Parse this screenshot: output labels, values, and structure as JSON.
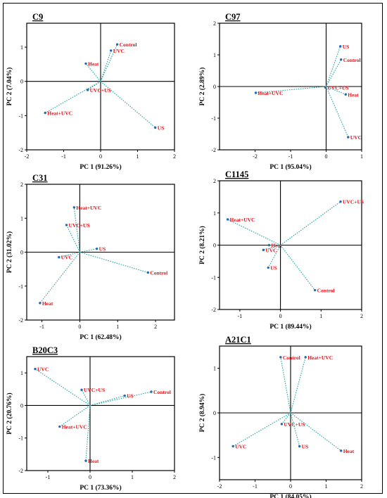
{
  "chart_data": [
    {
      "type": "scatter",
      "title": "C9",
      "xlabel": "PC 1 (91.26%)",
      "ylabel": "PC 2 (7.04%)",
      "xlim": [
        -2,
        2
      ],
      "ylim": [
        -2,
        1.7
      ],
      "xticks": [
        -2,
        -1,
        0,
        1,
        2
      ],
      "yticks": [
        -2,
        -1,
        0,
        1
      ],
      "points": [
        {
          "label": "Control",
          "x": 0.45,
          "y": 1.08
        },
        {
          "label": "UVC",
          "x": 0.28,
          "y": 0.9
        },
        {
          "label": "Heat",
          "x": -0.4,
          "y": 0.52
        },
        {
          "label": "UVC+US",
          "x": -0.35,
          "y": -0.25
        },
        {
          "label": "Heat+UVC",
          "x": -1.5,
          "y": -0.92
        },
        {
          "label": "US",
          "x": 1.48,
          "y": -1.35
        }
      ]
    },
    {
      "type": "scatter",
      "title": "C97",
      "xlabel": "PC 1 (95.04%)",
      "ylabel": "PC 2 (2.89%)",
      "xlim": [
        -3,
        1
      ],
      "ylim": [
        -2,
        2
      ],
      "xticks": [
        -2,
        -1,
        0,
        1
      ],
      "yticks": [
        -2,
        -1,
        0,
        1,
        2
      ],
      "points": [
        {
          "label": "US",
          "x": 0.4,
          "y": 1.27
        },
        {
          "label": "Control",
          "x": 0.42,
          "y": 0.85
        },
        {
          "label": "Heat+UVC",
          "x": -1.98,
          "y": -0.2
        },
        {
          "label": "UVC+US",
          "x": -0.02,
          "y": -0.03
        },
        {
          "label": "Heat",
          "x": 0.55,
          "y": -0.25
        },
        {
          "label": "UVC",
          "x": 0.62,
          "y": -1.6
        }
      ]
    },
    {
      "type": "scatter",
      "title": "C31",
      "xlabel": "PC 1 (62.48%)",
      "ylabel": "PC 2 (31.02%)",
      "xlim": [
        -1.4,
        2.5
      ],
      "ylim": [
        -2,
        2
      ],
      "xticks": [
        -1,
        0,
        1,
        2
      ],
      "yticks": [
        -2,
        -1,
        0,
        1,
        2
      ],
      "points": [
        {
          "label": "Heat+UVC",
          "x": -0.15,
          "y": 1.32
        },
        {
          "label": "UVC+US",
          "x": -0.35,
          "y": 0.8
        },
        {
          "label": "US",
          "x": 0.45,
          "y": 0.1
        },
        {
          "label": "UVC",
          "x": -0.55,
          "y": -0.15
        },
        {
          "label": "Control",
          "x": 1.8,
          "y": -0.6
        },
        {
          "label": "Heat",
          "x": -1.05,
          "y": -1.5
        }
      ]
    },
    {
      "type": "scatter",
      "title": "C1145",
      "xlabel": "PC 1 (89.44%)",
      "ylabel": "PC 2 (8.21%)",
      "xlim": [
        -1.5,
        2
      ],
      "ylim": [
        -2,
        2
      ],
      "xticks": [
        -1,
        0,
        1,
        2
      ],
      "yticks": [
        -2,
        -1,
        0,
        1,
        2
      ],
      "points": [
        {
          "label": "UVC+US",
          "x": 1.48,
          "y": 1.35
        },
        {
          "label": "Heat+UVC",
          "x": -1.3,
          "y": 0.8
        },
        {
          "label": "Heat",
          "x": -0.28,
          "y": 0.0
        },
        {
          "label": "UVC",
          "x": -0.42,
          "y": -0.15
        },
        {
          "label": "US",
          "x": -0.3,
          "y": -0.7
        },
        {
          "label": "Control",
          "x": 0.85,
          "y": -1.4
        }
      ]
    },
    {
      "type": "scatter",
      "title": "B20C3",
      "xlabel": "PC 1 (73.36%)",
      "ylabel": "PC 2 (20.76%)",
      "xlim": [
        -1.5,
        2
      ],
      "ylim": [
        -2,
        1.5
      ],
      "xticks": [
        -1,
        0,
        1,
        2
      ],
      "yticks": [
        -2,
        -1,
        0,
        1
      ],
      "points": [
        {
          "label": "UVC",
          "x": -1.3,
          "y": 1.12
        },
        {
          "label": "UVC+US",
          "x": -0.2,
          "y": 0.48
        },
        {
          "label": "Control",
          "x": 1.45,
          "y": 0.42
        },
        {
          "label": "US",
          "x": 0.82,
          "y": 0.3
        },
        {
          "label": "Heat+UVC",
          "x": -0.72,
          "y": -0.65
        },
        {
          "label": "Heat",
          "x": -0.1,
          "y": -1.7
        }
      ]
    },
    {
      "type": "scatter",
      "title": "A21C1",
      "xlabel": "PC 1 (84.05%)",
      "ylabel": "PC 2 (8.94%)",
      "xlim": [
        -2,
        2
      ],
      "ylim": [
        -1.5,
        1.5
      ],
      "xticks": [
        -2,
        -1,
        0,
        1,
        2
      ],
      "yticks": [
        -1,
        0,
        1
      ],
      "points": [
        {
          "label": "Control",
          "x": -0.28,
          "y": 1.25
        },
        {
          "label": "Heat+UVC",
          "x": 0.42,
          "y": 1.25
        },
        {
          "label": "UVC+US",
          "x": -0.25,
          "y": -0.25
        },
        {
          "label": "US",
          "x": 0.25,
          "y": -0.75
        },
        {
          "label": "UVC",
          "x": -1.62,
          "y": -0.75
        },
        {
          "label": "Heat",
          "x": 1.42,
          "y": -0.85
        }
      ]
    }
  ]
}
